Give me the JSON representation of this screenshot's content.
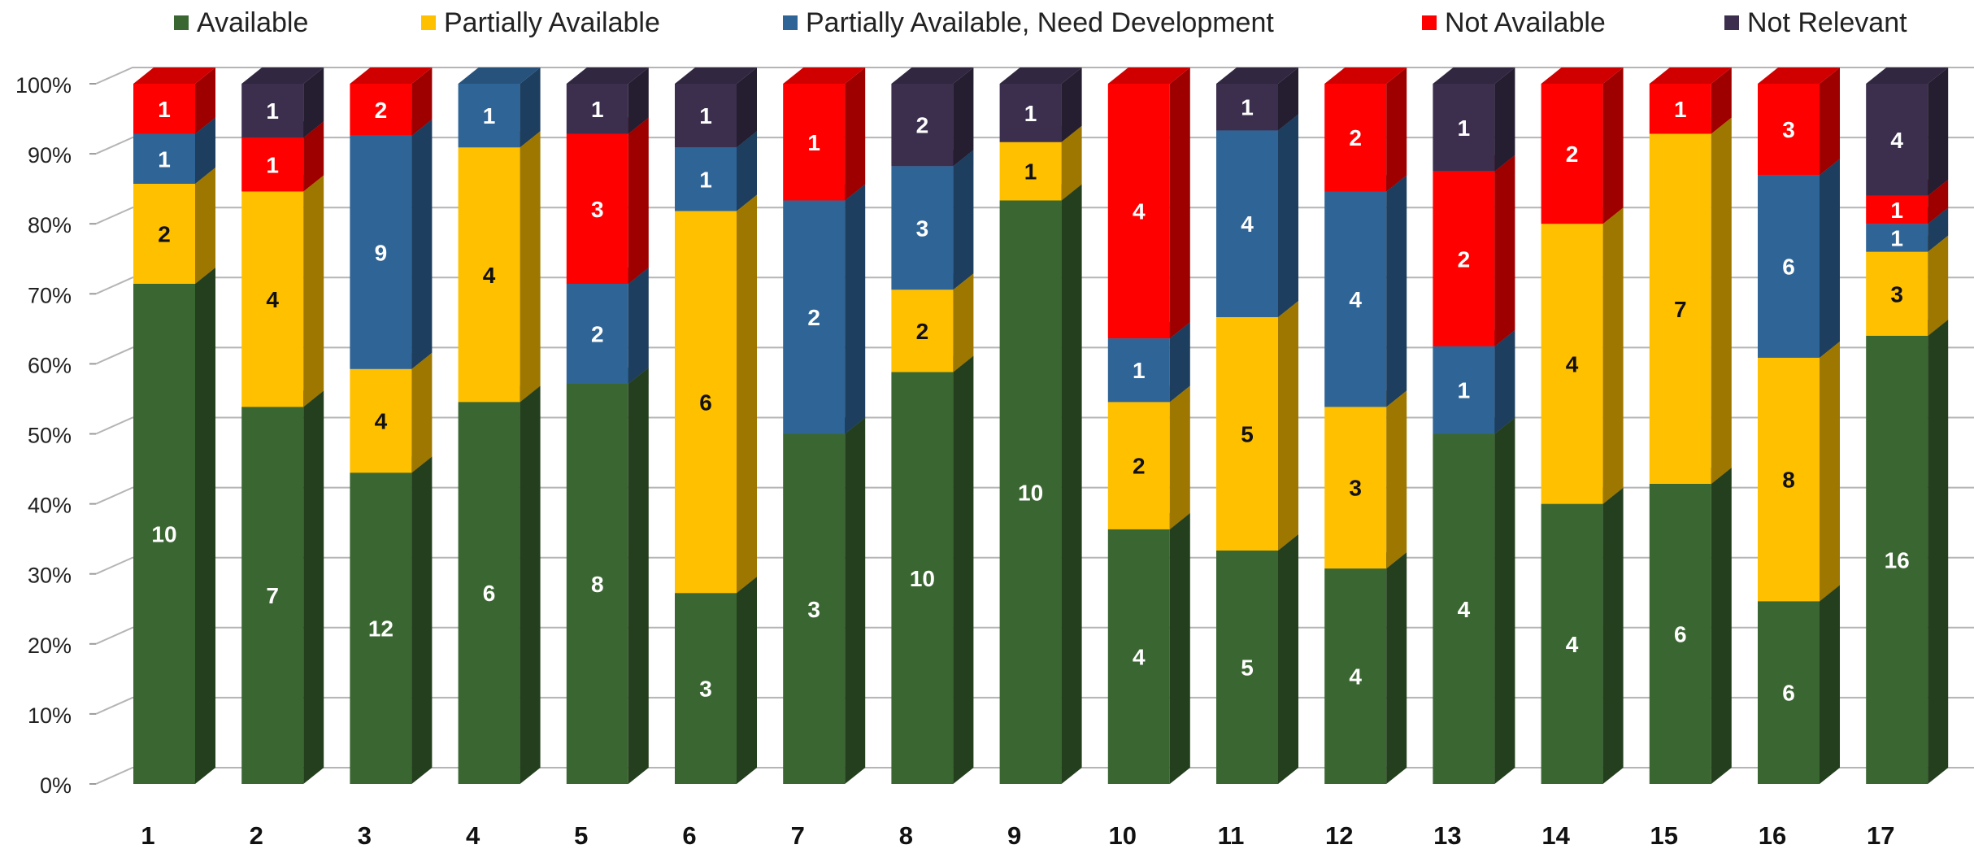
{
  "chart_data": {
    "type": "bar",
    "stacked": true,
    "normalized": true,
    "three_d": true,
    "categories": [
      "1",
      "2",
      "3",
      "4",
      "5",
      "6",
      "7",
      "8",
      "9",
      "10",
      "11",
      "12",
      "13",
      "14",
      "15",
      "16",
      "17"
    ],
    "series": [
      {
        "name": "Available",
        "color": "#3a6631",
        "values": [
          10,
          7,
          12,
          6,
          8,
          3,
          3,
          10,
          10,
          4,
          5,
          4,
          4,
          4,
          6,
          6,
          16
        ]
      },
      {
        "name": "Partially Available",
        "color": "#ffc000",
        "values": [
          2,
          4,
          4,
          4,
          0,
          6,
          0,
          2,
          1,
          2,
          5,
          3,
          0,
          4,
          7,
          8,
          3
        ]
      },
      {
        "name": "Partially Available, Need Development",
        "color": "#2f6497",
        "values": [
          1,
          0,
          9,
          1,
          2,
          1,
          2,
          3,
          0,
          1,
          4,
          4,
          1,
          0,
          0,
          6,
          1
        ]
      },
      {
        "name": "Not Available",
        "color": "#ff0000",
        "values": [
          1,
          1,
          2,
          0,
          3,
          0,
          1,
          0,
          0,
          4,
          0,
          2,
          2,
          2,
          1,
          3,
          1
        ]
      },
      {
        "name": "Not Relevant",
        "color": "#3c2f4e",
        "values": [
          0,
          1,
          0,
          0,
          1,
          1,
          0,
          2,
          1,
          0,
          1,
          0,
          1,
          0,
          0,
          0,
          4
        ]
      }
    ],
    "y_ticks": [
      "0%",
      "10%",
      "20%",
      "30%",
      "40%",
      "50%",
      "60%",
      "70%",
      "80%",
      "90%",
      "100%"
    ],
    "ylim": [
      0,
      100
    ],
    "grid": true,
    "legend_position": "top"
  }
}
